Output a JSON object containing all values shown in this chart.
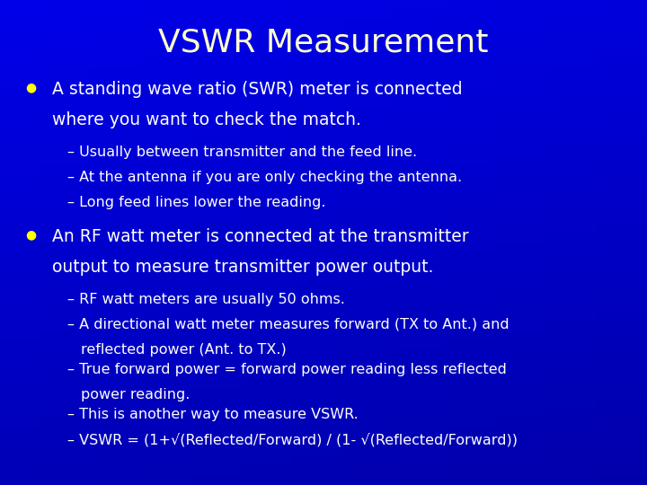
{
  "title": "VSWR Measurement",
  "title_color": "#FFFFCC",
  "title_fontsize": 26,
  "bg_color": "#0000CC",
  "bullet1_line1": "A standing wave ratio (SWR) meter is connected",
  "bullet1_line2": "where you want to check the match.",
  "bullet1_sub": [
    "Usually between transmitter and the feed line.",
    "At the antenna if you are only checking the antenna.",
    "Long feed lines lower the reading."
  ],
  "bullet2_line1": "An RF watt meter is connected at the transmitter",
  "bullet2_line2": "output to measure transmitter power output.",
  "bullet2_sub": [
    [
      "RF watt meters are usually 50 ohms.",
      false
    ],
    [
      "A directional watt meter measures forward (TX to Ant.) and",
      false
    ],
    [
      "reflected power (Ant. to TX.)",
      true
    ],
    [
      "True forward power = forward power reading less reflected",
      false
    ],
    [
      "power reading.",
      true
    ],
    [
      "This is another way to measure VSWR.",
      false
    ],
    [
      "VSWR = (1+√(Reflected/Forward) / (1- √(Reflected/Forward))",
      false
    ]
  ],
  "bullet_color": "#FFFF00",
  "text_color": "#FFFFFF",
  "sub_color": "#FFFFFF",
  "bullet_fontsize": 13.5,
  "sub_fontsize": 11.5,
  "dash": "– ",
  "arc1_color": "#4455FF",
  "arc2_color": "#5566FF"
}
